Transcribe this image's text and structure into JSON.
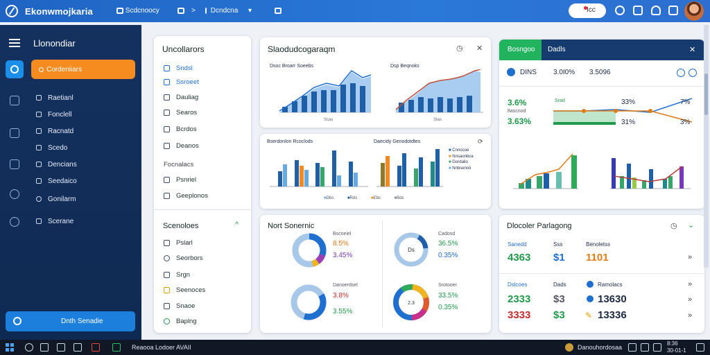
{
  "topbar": {
    "brand": "Ekonwmojkaria",
    "item1": "Scdcnoocy",
    "item2": "Dcndcna",
    "sep": ">",
    "chev": "▾",
    "pill": "Icc"
  },
  "sidebar": {
    "title": "Llonondiar",
    "active": "Cordeniiars",
    "items": [
      "Raetianl",
      "Fonclell",
      "Racnatd",
      "Scedo",
      "Dencians",
      "Seedaico",
      "Gonilarm",
      "Scerane"
    ],
    "bottom": "Dnth Senadie"
  },
  "nav_card": {
    "title": "Uncollarors",
    "items": [
      {
        "label": "Sndsl",
        "active": true,
        "icon": "bar-chart-icon"
      },
      {
        "label": "Ssroeet",
        "active": true,
        "icon": "table-icon"
      },
      {
        "label": "Dauliag",
        "active": false,
        "icon": "layers-icon"
      },
      {
        "label": "Searos",
        "active": false,
        "icon": "trend-icon"
      },
      {
        "label": "Bcrdos",
        "active": false,
        "icon": "file-icon"
      },
      {
        "label": "Deanos",
        "active": false,
        "icon": "image-icon"
      }
    ],
    "section": "Focnalacs",
    "items2": [
      {
        "label": "Psnriel",
        "icon": "document-icon"
      },
      {
        "label": "Geeplonos",
        "icon": "settings-icon"
      }
    ],
    "section2": "Scenoloes",
    "section2_chev": "^",
    "items3": [
      {
        "label": "Pslarl",
        "icon": "shield-icon"
      },
      {
        "label": "Seorbors",
        "icon": "location-icon"
      },
      {
        "label": "Srgn",
        "icon": "share-icon"
      },
      {
        "label": "Seenoces",
        "icon": "users-icon"
      },
      {
        "label": "Snaoe",
        "icon": "home-icon"
      },
      {
        "label": "Baplng",
        "icon": "pin-icon"
      }
    ]
  },
  "area_card": {
    "title": "Slaodudcogaraqm",
    "left_title": "Dsoc Broarr Soeebs",
    "right_title": "Dsp Beqnoks",
    "left_x": "Scas",
    "right_x": "Stas"
  },
  "bar_card": {
    "left_title": "Bserdonlon Rcoclods",
    "right_title": "Daecidy Genodotdtes",
    "legend": [
      "Cnnocoe",
      "Nnsaonbca",
      "Gordalio",
      "Nnbsenoli"
    ],
    "bottom_legend": [
      "Dbs",
      "Rds",
      "Ebs",
      "Bds"
    ]
  },
  "donut_card": {
    "title": "Nort Sonernic",
    "d1": {
      "label": "Bscneiel",
      "v1": "8.5%",
      "v2": "3.45%"
    },
    "d2": {
      "label": "Cadosd",
      "v1": "36.5%",
      "v2": "0.35%",
      "center": "Ds"
    },
    "d3": {
      "label": "Danoerdsel",
      "v1": "3.8%",
      "v2": "3.55%"
    },
    "d4": {
      "label": "Srotooer",
      "v1": "33.5%",
      "v2": "0.35%",
      "center": "2.3"
    }
  },
  "kpi_card": {
    "tab_active": "Bosngoo",
    "tab_other": "Dadls",
    "close": "✕",
    "row": {
      "label": "DINS",
      "v1": "3.0I0%",
      "v2": "3.5096"
    },
    "left_v1": "3.6%",
    "left_v2": "3.63%",
    "left_label": "8ascnod",
    "mid_label": "Srad",
    "right_v1": "33%",
    "right_v2": "31%",
    "far_v1": "7%",
    "far_v2": "3%"
  },
  "summary_card": {
    "title": "Dlocoler Parlagong",
    "cols": [
      "Sanedd",
      "Sss",
      "Benoletss"
    ],
    "row1": [
      "4363",
      "$1",
      "1101"
    ],
    "section": [
      "Dslcoes",
      "Dads",
      "Ramolacs"
    ],
    "row2": [
      "2333",
      "$3",
      "13630"
    ],
    "row3": [
      "3333",
      "$3",
      "13336"
    ],
    "arrow": "»"
  },
  "taskbar": {
    "search": "Reaooa Lodoer AVAII",
    "user": "Danouhordosaa",
    "time": "8:36",
    "date": "30-01-1"
  },
  "colors": {
    "accent": "#1f64c3",
    "orange": "#f68b1f",
    "green": "#22b35e",
    "sidebar": "#14315f"
  }
}
